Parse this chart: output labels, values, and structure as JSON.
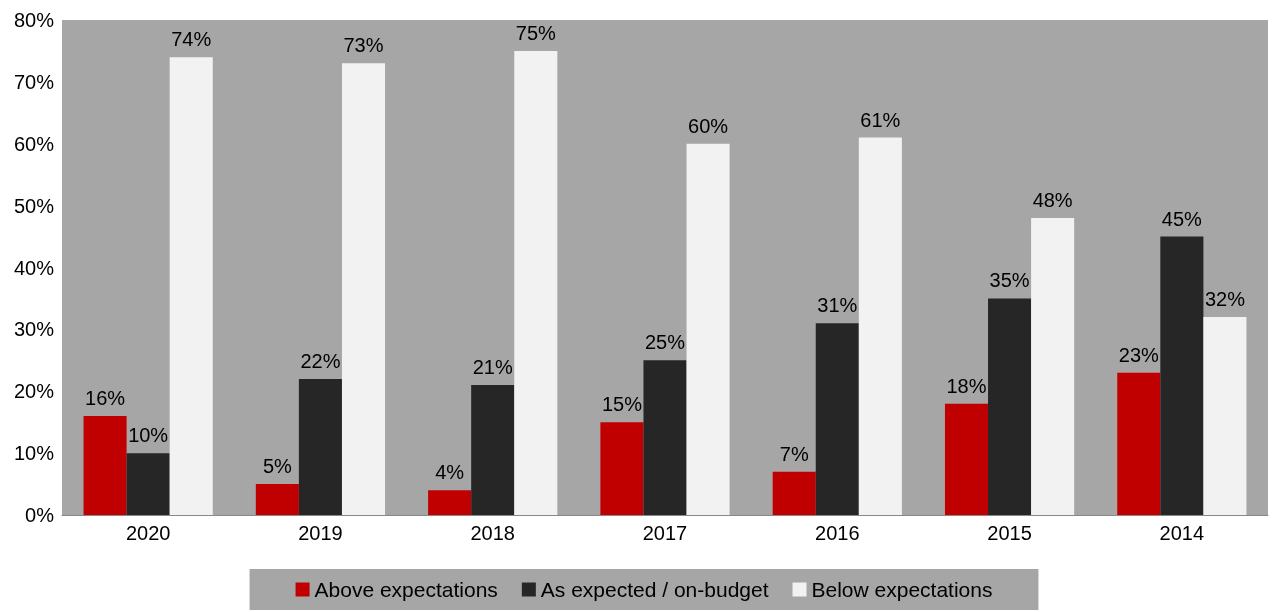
{
  "chart_data": {
    "type": "bar",
    "categories": [
      "2020",
      "2019",
      "2018",
      "2017",
      "2016",
      "2015",
      "2014"
    ],
    "series": [
      {
        "name": "Above expectations",
        "color": "#c00000",
        "values": [
          16,
          5,
          4,
          15,
          7,
          18,
          23
        ],
        "value_labels": [
          "16%",
          "5%",
          "4%",
          "15%",
          "7%",
          "18%",
          "23%"
        ]
      },
      {
        "name": "As expected / on-budget",
        "color": "#262626",
        "values": [
          10,
          22,
          21,
          25,
          31,
          35,
          45
        ],
        "value_labels": [
          "10%",
          "22%",
          "21%",
          "25%",
          "31%",
          "35%",
          "45%"
        ]
      },
      {
        "name": "Below expectations",
        "color": "#f2f2f2",
        "values": [
          74,
          73,
          75,
          60,
          61,
          48,
          32
        ],
        "value_labels": [
          "74%",
          "73%",
          "75%",
          "60%",
          "61%",
          "48%",
          "32%"
        ]
      }
    ],
    "ylim": [
      0,
      80
    ],
    "yticks": [
      {
        "value": 0,
        "label": "0%"
      },
      {
        "value": 10,
        "label": "10%"
      },
      {
        "value": 20,
        "label": "20%"
      },
      {
        "value": 30,
        "label": "30%"
      },
      {
        "value": 40,
        "label": "40%"
      },
      {
        "value": 50,
        "label": "50%"
      },
      {
        "value": 60,
        "label": "60%"
      },
      {
        "value": 70,
        "label": "70%"
      },
      {
        "value": 80,
        "label": "80%"
      }
    ],
    "grid": false,
    "legend": "bottom"
  }
}
